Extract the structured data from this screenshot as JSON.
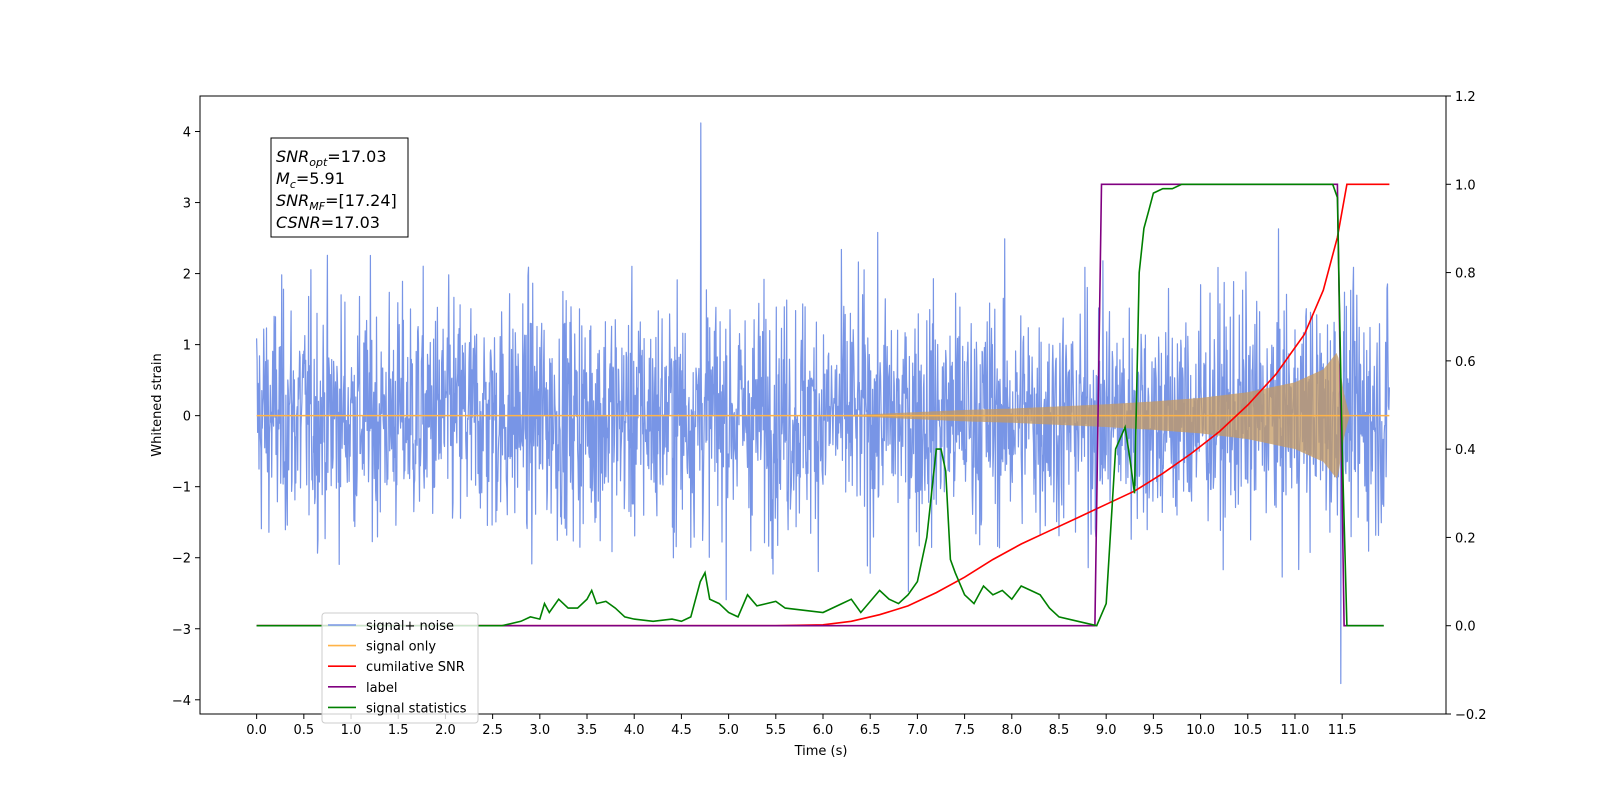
{
  "chart_data": {
    "type": "line",
    "xlabel": "Time (s)",
    "ylabel_left": "Whitened strain",
    "ylabel_right": "",
    "xlim": [
      -0.6,
      12.6
    ],
    "ylim_left": [
      -4.2,
      4.5
    ],
    "ylim_right": [
      -0.2,
      1.2
    ],
    "x_ticks": [
      "0.0",
      "0.5",
      "1.0",
      "1.5",
      "2.0",
      "2.5",
      "3.0",
      "3.5",
      "4.0",
      "4.5",
      "5.0",
      "5.5",
      "6.0",
      "6.5",
      "7.0",
      "7.5",
      "8.0",
      "8.5",
      "9.0",
      "9.5",
      "10.0",
      "10.5",
      "11.0",
      "11.5"
    ],
    "y_ticks_left": [
      "−4",
      "−3",
      "−2",
      "−1",
      "0",
      "1",
      "2",
      "3",
      "4"
    ],
    "y_ticks_right": [
      "−0.2",
      "0.0",
      "0.2",
      "0.4",
      "0.6",
      "0.8",
      "1.0",
      "1.2"
    ],
    "grid": false,
    "legend": {
      "placement": "lower-left",
      "entries": [
        "signal+ noise",
        "signal only",
        "cumilative SNR",
        "label",
        "signal statistics"
      ]
    },
    "annotation": {
      "lines": [
        {
          "var": "SNR",
          "sub": "opt",
          "value": "=17.03"
        },
        {
          "var": "M",
          "sub": "c",
          "value": "=5.91"
        },
        {
          "var": "SNR",
          "sub": "MF",
          "value": "=[17.24]"
        },
        {
          "var": "CSNR",
          "sub": "",
          "value": "=17.03"
        }
      ]
    },
    "series": [
      {
        "name": "signal+ noise",
        "axis": "left",
        "color": "#7895e6",
        "style": "noise",
        "x_range": [
          0.0,
          12.0
        ],
        "std": 0.82,
        "max_value": 4.12,
        "min_value": -3.77
      },
      {
        "name": "signal only",
        "axis": "left",
        "color": "#ffb347",
        "style": "chirp",
        "envelope": {
          "x": [
            0.0,
            6.0,
            6.5,
            7.0,
            7.5,
            8.0,
            8.5,
            9.0,
            9.5,
            10.0,
            10.5,
            11.0,
            11.3,
            11.45,
            11.52,
            11.58,
            12.0
          ],
          "y": [
            0.0,
            0.0,
            0.02,
            0.05,
            0.08,
            0.1,
            0.13,
            0.16,
            0.2,
            0.25,
            0.33,
            0.47,
            0.65,
            0.9,
            0.3,
            0.0,
            0.0
          ]
        }
      },
      {
        "name": "cumilative SNR",
        "axis": "right",
        "color": "#ff0000",
        "x": [
          0.0,
          5.5,
          6.0,
          6.3,
          6.6,
          6.9,
          7.2,
          7.5,
          7.8,
          8.1,
          8.4,
          8.7,
          9.0,
          9.3,
          9.6,
          9.9,
          10.2,
          10.5,
          10.8,
          11.1,
          11.3,
          11.45,
          11.55,
          12.0
        ],
        "y": [
          0.0,
          0.0,
          0.002,
          0.01,
          0.025,
          0.045,
          0.075,
          0.11,
          0.15,
          0.185,
          0.215,
          0.245,
          0.275,
          0.305,
          0.345,
          0.39,
          0.44,
          0.5,
          0.57,
          0.66,
          0.76,
          0.88,
          1.0,
          1.0
        ]
      },
      {
        "name": "label",
        "axis": "right",
        "color": "#800080",
        "x": [
          0.0,
          8.88,
          8.95,
          11.45,
          11.52,
          11.94
        ],
        "y": [
          0.0,
          0.0,
          1.0,
          1.0,
          0.0,
          0.0
        ]
      },
      {
        "name": "signal statistics",
        "axis": "right",
        "color": "#008000",
        "x": [
          0.0,
          2.6,
          2.8,
          2.9,
          3.0,
          3.05,
          3.1,
          3.2,
          3.3,
          3.4,
          3.5,
          3.55,
          3.6,
          3.7,
          3.8,
          3.9,
          4.0,
          4.2,
          4.4,
          4.5,
          4.6,
          4.7,
          4.75,
          4.8,
          4.9,
          5.0,
          5.1,
          5.2,
          5.3,
          5.4,
          5.5,
          5.6,
          5.8,
          6.0,
          6.2,
          6.3,
          6.4,
          6.6,
          6.7,
          6.8,
          6.9,
          7.0,
          7.1,
          7.2,
          7.25,
          7.3,
          7.35,
          7.4,
          7.5,
          7.6,
          7.7,
          7.8,
          7.9,
          8.0,
          8.1,
          8.2,
          8.3,
          8.4,
          8.5,
          8.7,
          8.9,
          9.0,
          9.1,
          9.2,
          9.25,
          9.3,
          9.35,
          9.4,
          9.45,
          9.5,
          9.6,
          9.7,
          9.8,
          10.0,
          11.0,
          11.4,
          11.45,
          11.5,
          11.55,
          11.6,
          11.94
        ],
        "y": [
          0.0,
          0.0,
          0.01,
          0.02,
          0.015,
          0.05,
          0.03,
          0.06,
          0.04,
          0.04,
          0.06,
          0.08,
          0.05,
          0.055,
          0.04,
          0.02,
          0.015,
          0.01,
          0.015,
          0.01,
          0.02,
          0.1,
          0.12,
          0.06,
          0.05,
          0.03,
          0.02,
          0.07,
          0.045,
          0.05,
          0.055,
          0.04,
          0.035,
          0.03,
          0.05,
          0.06,
          0.03,
          0.08,
          0.06,
          0.05,
          0.07,
          0.1,
          0.2,
          0.4,
          0.4,
          0.35,
          0.15,
          0.12,
          0.07,
          0.05,
          0.09,
          0.07,
          0.08,
          0.06,
          0.09,
          0.08,
          0.07,
          0.04,
          0.02,
          0.01,
          0.0,
          0.05,
          0.4,
          0.45,
          0.38,
          0.3,
          0.8,
          0.9,
          0.94,
          0.98,
          0.99,
          0.99,
          1.0,
          1.0,
          1.0,
          1.0,
          0.97,
          0.4,
          0.0,
          0.0,
          0.0
        ]
      }
    ]
  }
}
